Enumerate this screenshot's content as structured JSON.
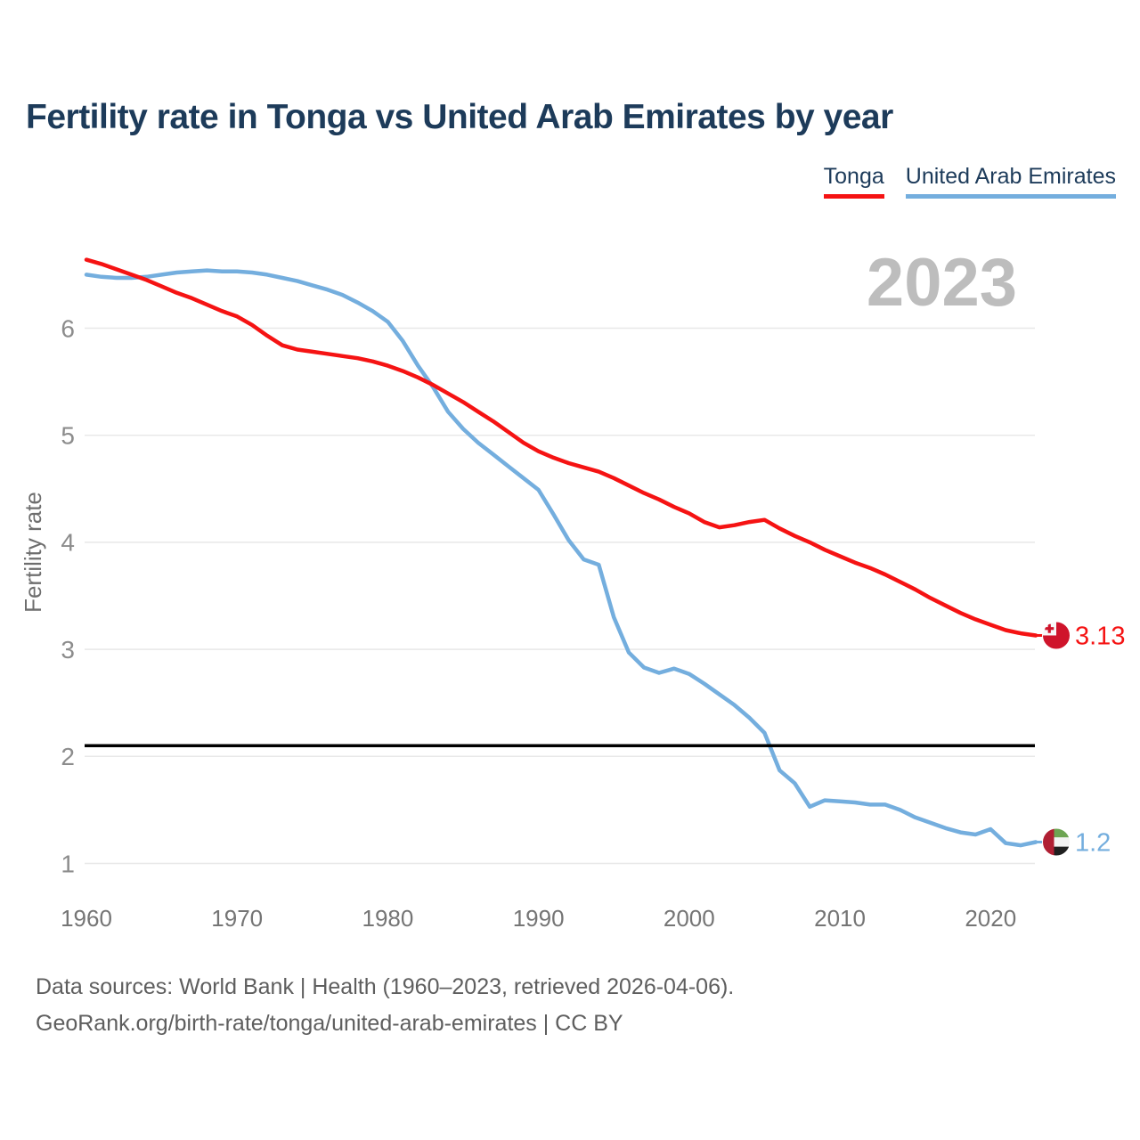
{
  "header": {
    "title": "Fertility rate in Tonga vs United Arab Emirates by year"
  },
  "legend": {
    "items": [
      {
        "label": "Tonga",
        "color": "#f51313"
      },
      {
        "label": "United Arab Emirates",
        "color": "#74aede"
      }
    ]
  },
  "watermark": "2023",
  "chart_data": {
    "type": "line",
    "title": "Fertility rate in Tonga vs United Arab Emirates by year",
    "xlabel": "",
    "ylabel": "Fertility rate",
    "grid": "horizontal",
    "legend_position": "top-right",
    "xlim": [
      1960,
      2023
    ],
    "ylim": [
      0.7,
      6.9
    ],
    "yticks": [
      1,
      2,
      3,
      4,
      5,
      6
    ],
    "xticks": [
      1960,
      1970,
      1980,
      1990,
      2000,
      2010,
      2020
    ],
    "reference_line": {
      "value": 2.1,
      "color": "#000000"
    },
    "x": [
      1960,
      1961,
      1962,
      1963,
      1964,
      1965,
      1966,
      1967,
      1968,
      1969,
      1970,
      1971,
      1972,
      1973,
      1974,
      1975,
      1976,
      1977,
      1978,
      1979,
      1980,
      1981,
      1982,
      1983,
      1984,
      1985,
      1986,
      1987,
      1988,
      1989,
      1990,
      1991,
      1992,
      1993,
      1994,
      1995,
      1996,
      1997,
      1998,
      1999,
      2000,
      2001,
      2002,
      2003,
      2004,
      2005,
      2006,
      2007,
      2008,
      2009,
      2010,
      2011,
      2012,
      2013,
      2014,
      2015,
      2016,
      2017,
      2018,
      2019,
      2020,
      2021,
      2022,
      2023
    ],
    "series": [
      {
        "name": "Tonga",
        "color": "#f51313",
        "end_label": "3.13",
        "flag": "tonga",
        "flag_colors": {
          "red": "#cf142b",
          "white": "#f7f7f7"
        },
        "values": [
          6.64,
          6.6,
          6.55,
          6.5,
          6.45,
          6.39,
          6.33,
          6.28,
          6.22,
          6.16,
          6.11,
          6.03,
          5.93,
          5.84,
          5.8,
          5.78,
          5.76,
          5.74,
          5.72,
          5.69,
          5.65,
          5.6,
          5.54,
          5.47,
          5.39,
          5.31,
          5.22,
          5.13,
          5.03,
          4.93,
          4.85,
          4.79,
          4.74,
          4.7,
          4.66,
          4.6,
          4.53,
          4.46,
          4.4,
          4.33,
          4.27,
          4.19,
          4.14,
          4.16,
          4.19,
          4.21,
          4.13,
          4.06,
          4.0,
          3.93,
          3.87,
          3.81,
          3.76,
          3.7,
          3.63,
          3.56,
          3.48,
          3.41,
          3.34,
          3.28,
          3.23,
          3.18,
          3.15,
          3.13
        ]
      },
      {
        "name": "United Arab Emirates",
        "color": "#74aede",
        "end_label": "1.2",
        "flag": "uae",
        "flag_colors": {
          "red": "#b01f33",
          "green": "#6da452",
          "white": "#f2f2f2",
          "black": "#1f1f1f"
        },
        "values": [
          6.5,
          6.48,
          6.47,
          6.47,
          6.48,
          6.5,
          6.52,
          6.53,
          6.54,
          6.53,
          6.53,
          6.52,
          6.5,
          6.47,
          6.44,
          6.4,
          6.36,
          6.31,
          6.24,
          6.16,
          6.06,
          5.88,
          5.65,
          5.45,
          5.22,
          5.06,
          4.93,
          4.82,
          4.71,
          4.6,
          4.49,
          4.26,
          4.02,
          3.84,
          3.79,
          3.3,
          2.97,
          2.83,
          2.78,
          2.82,
          2.77,
          2.68,
          2.58,
          2.48,
          2.36,
          2.22,
          1.87,
          1.75,
          1.53,
          1.59,
          1.58,
          1.57,
          1.55,
          1.55,
          1.5,
          1.43,
          1.38,
          1.33,
          1.29,
          1.27,
          1.32,
          1.19,
          1.17,
          1.2
        ]
      }
    ]
  },
  "footer": {
    "line1": "Data sources: World Bank | Health (1960–2023, retrieved 2026-04-06).",
    "line2": "GeoRank.org/birth-rate/tonga/united-arab-emirates | CC BY"
  }
}
